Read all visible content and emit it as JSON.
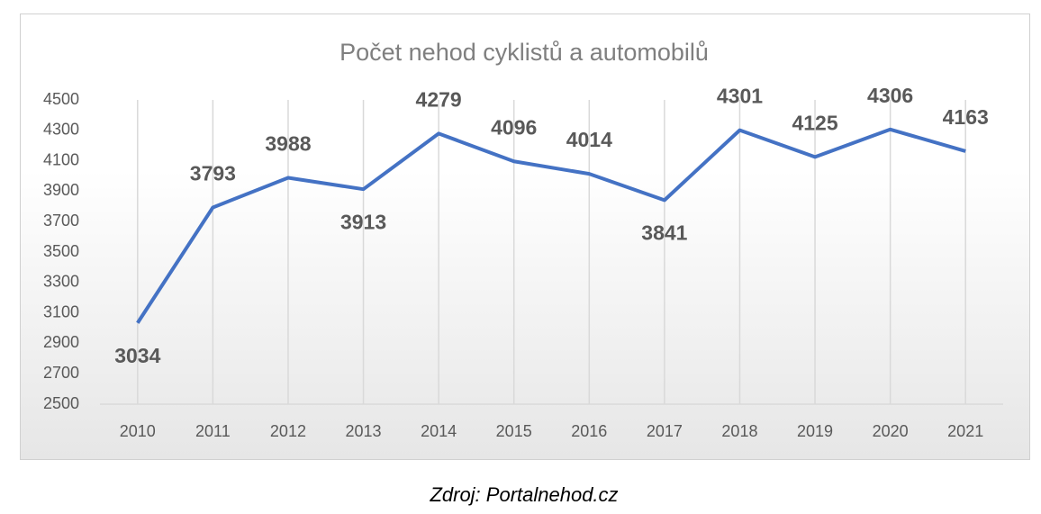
{
  "chart_data": {
    "type": "line",
    "title": "Počet nehod cyklistů a automobilů",
    "categories": [
      "2010",
      "2011",
      "2012",
      "2013",
      "2014",
      "2015",
      "2016",
      "2017",
      "2018",
      "2019",
      "2020",
      "2021"
    ],
    "values": [
      3034,
      3793,
      3988,
      3913,
      4279,
      4096,
      4014,
      3841,
      4301,
      4125,
      4306,
      4163
    ],
    "color": "#4472c4",
    "ylim": [
      2500,
      4500
    ],
    "yticks": [
      2500,
      2700,
      2900,
      3100,
      3300,
      3500,
      3700,
      3900,
      4100,
      4300,
      4500
    ],
    "grid": "vertical",
    "source": "Zdroj: Portalnehod.cz"
  }
}
